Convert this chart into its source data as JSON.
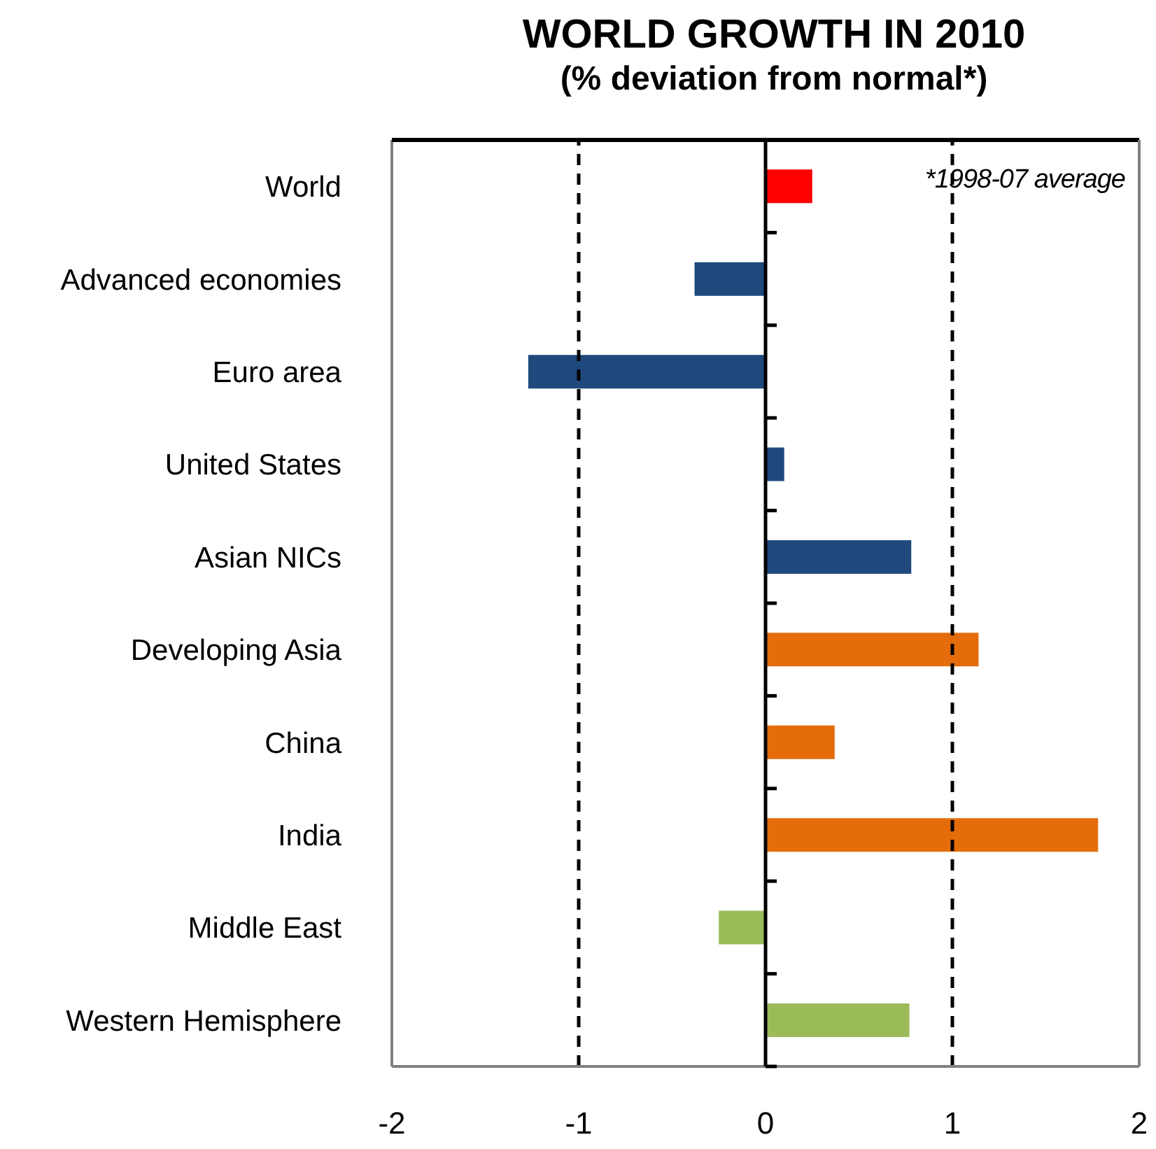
{
  "chart_data": {
    "type": "bar",
    "orientation": "horizontal",
    "title": "WORLD GROWTH  IN 2010",
    "subtitle": "(% deviation from normal*)",
    "categories": [
      "World",
      "Advanced economies",
      "Euro area",
      "United States",
      "Asian NICs",
      "Developing Asia",
      "China",
      "India",
      "Middle East",
      "Western Hemisphere"
    ],
    "values": [
      0.25,
      -0.38,
      -1.27,
      0.1,
      0.78,
      1.14,
      0.37,
      1.78,
      -0.25,
      0.77
    ],
    "colors": [
      "#ff0000",
      "#1f497d",
      "#1f497d",
      "#1f497d",
      "#1f497d",
      "#e46c0a",
      "#e46c0a",
      "#e46c0a",
      "#9bbb59",
      "#9bbb59"
    ],
    "xlim": [
      -2,
      2
    ],
    "xticks": [
      -2,
      -1,
      0,
      1,
      2
    ],
    "ref_lines": [
      {
        "axis": "x",
        "value": -1,
        "line_style": "dashed",
        "color": "#000000"
      },
      {
        "axis": "x",
        "value": 1,
        "line_style": "dashed",
        "color": "#000000"
      }
    ],
    "annotations": [
      "*1998-07 average"
    ],
    "grid": false,
    "legend": false
  }
}
